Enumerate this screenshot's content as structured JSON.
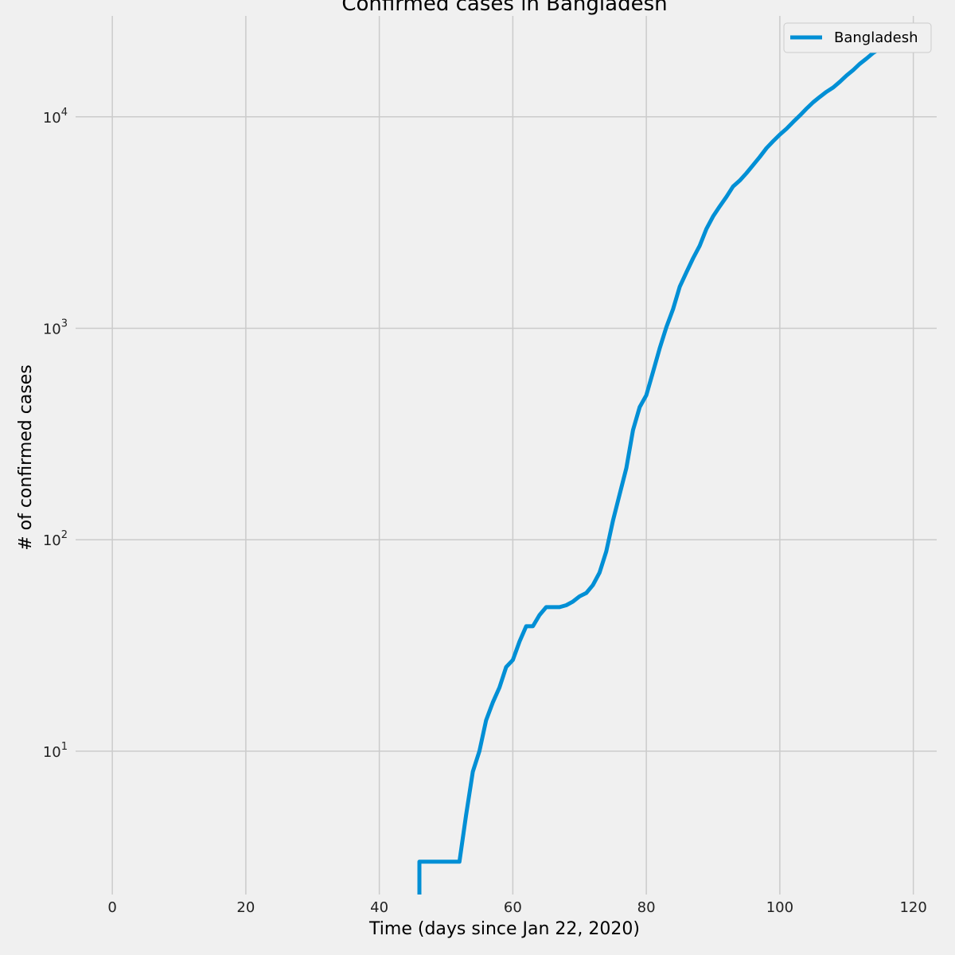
{
  "chart_data": {
    "type": "line",
    "title": "Confirmed cases in Bangladesh",
    "xlabel": "Time (days since Jan 22, 2020)",
    "ylabel": "# of confirmed cases",
    "yscale": "log",
    "xlim": [
      -5.5,
      123.5
    ],
    "ylim": [
      2.1,
      30000
    ],
    "xticks": [
      0,
      20,
      40,
      60,
      80,
      100,
      120
    ],
    "yticks": [
      10,
      100,
      1000,
      10000
    ],
    "ytick_labels": [
      {
        "base": "10",
        "exp": "1"
      },
      {
        "base": "10",
        "exp": "2"
      },
      {
        "base": "10",
        "exp": "3"
      },
      {
        "base": "10",
        "exp": "4"
      }
    ],
    "grid": true,
    "legend_position": "top-right",
    "series": [
      {
        "name": "Bangladesh",
        "color": "#008fd5",
        "x": [
          45,
          46,
          47,
          48,
          49,
          50,
          51,
          52,
          53,
          54,
          55,
          56,
          57,
          58,
          59,
          60,
          61,
          62,
          63,
          64,
          65,
          66,
          67,
          68,
          69,
          70,
          71,
          72,
          73,
          74,
          75,
          76,
          77,
          78,
          79,
          80,
          81,
          82,
          83,
          84,
          85,
          86,
          87,
          88,
          89,
          90,
          91,
          92,
          93,
          94,
          95,
          96,
          97,
          98,
          99,
          100,
          101,
          102,
          103,
          104,
          105,
          106,
          107,
          108,
          109,
          110,
          111,
          112,
          113,
          114,
          115,
          116,
          117,
          118
        ],
        "y": [
          0,
          3,
          3,
          3,
          3,
          3,
          3,
          3,
          5,
          8,
          10,
          14,
          17,
          20,
          25,
          27,
          33,
          39,
          39,
          44,
          48,
          48,
          48,
          49,
          51,
          54,
          56,
          61,
          70,
          88,
          123,
          164,
          218,
          330,
          424,
          482,
          621,
          803,
          1012,
          1231,
          1572,
          1838,
          2144,
          2456,
          2948,
          3382,
          3772,
          4186,
          4689,
          4998,
          5416,
          5913,
          6462,
          7103,
          7667,
          8238,
          8790,
          9455,
          10143,
          10929,
          11719,
          12425,
          13134,
          13770,
          14657,
          15691,
          16660,
          17822,
          18863,
          20065,
          20995,
          22268,
          23870,
          25121
        ]
      }
    ]
  }
}
